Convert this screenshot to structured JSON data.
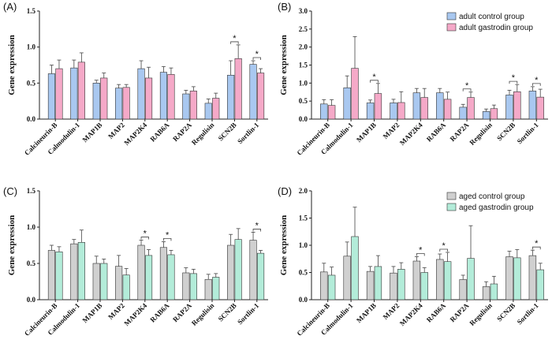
{
  "chart_data": [
    {
      "type": "bar",
      "panel": "(A)",
      "ylabel": "Gene expression",
      "ylim": [
        0,
        1.5
      ],
      "yticks": [
        "0.0",
        "0.5",
        "1.0",
        "1.5"
      ],
      "legend": null,
      "categories": [
        "Calcineurin-B",
        "Calmodulin-1",
        "MAP1B",
        "MAP2",
        "MAP2K4",
        "RAB6A",
        "RAP2A",
        "Regulisin",
        "SCN2B",
        "Sortlin-1"
      ],
      "series": [
        {
          "name": "adult control group",
          "color": "#a9c8f0",
          "values": [
            0.63,
            0.71,
            0.5,
            0.43,
            0.7,
            0.65,
            0.35,
            0.22,
            0.61,
            0.76
          ],
          "errors": [
            0.12,
            0.11,
            0.04,
            0.05,
            0.11,
            0.08,
            0.05,
            0.06,
            0.2,
            0.05
          ]
        },
        {
          "name": "adult gastrodin group",
          "color": "#f5a9c8",
          "values": [
            0.7,
            0.79,
            0.57,
            0.44,
            0.57,
            0.62,
            0.39,
            0.29,
            0.84,
            0.64
          ],
          "errors": [
            0.12,
            0.13,
            0.07,
            0.04,
            0.15,
            0.09,
            0.06,
            0.07,
            0.19,
            0.06
          ]
        }
      ],
      "significance": [
        {
          "category": "SCN2B",
          "label": "*"
        },
        {
          "category": "Sortlin-1",
          "label": "*"
        }
      ]
    },
    {
      "type": "bar",
      "panel": "(B)",
      "ylabel": "Gene expression",
      "ylim": [
        0,
        3.0
      ],
      "yticks": [
        "0.0",
        "0.5",
        "1.0",
        "1.5",
        "2.0",
        "2.5",
        "3.0"
      ],
      "legend": {
        "position": "top-right",
        "entries": [
          "adult control group",
          "adult gastrodin group"
        ]
      },
      "categories": [
        "Calcineurin-B",
        "Calmodulin-1",
        "MAP1B",
        "MAP2",
        "MAP2K4",
        "RAB6A",
        "RAP2A",
        "Regulisin",
        "SCN2B",
        "Sortlin-1"
      ],
      "series": [
        {
          "name": "adult control group",
          "color": "#a9c8f0",
          "values": [
            0.42,
            0.87,
            0.45,
            0.45,
            0.73,
            0.73,
            0.33,
            0.21,
            0.67,
            0.78
          ],
          "errors": [
            0.12,
            0.33,
            0.08,
            0.1,
            0.12,
            0.12,
            0.08,
            0.07,
            0.13,
            0.12
          ]
        },
        {
          "name": "adult gastrodin group",
          "color": "#f5a9c8",
          "values": [
            0.38,
            1.41,
            0.71,
            0.46,
            0.6,
            0.55,
            0.6,
            0.29,
            0.76,
            0.61
          ],
          "errors": [
            0.16,
            0.88,
            0.28,
            0.3,
            0.25,
            0.2,
            0.15,
            0.1,
            0.2,
            0.22
          ]
        }
      ],
      "significance": [
        {
          "category": "MAP1B",
          "label": "*"
        },
        {
          "category": "RAP2A",
          "label": "*"
        },
        {
          "category": "SCN2B",
          "label": "*"
        },
        {
          "category": "Sortlin-1",
          "label": "*"
        }
      ]
    },
    {
      "type": "bar",
      "panel": "(C)",
      "ylabel": "Gene expression",
      "ylim": [
        0,
        1.5
      ],
      "yticks": [
        "0.0",
        "0.5",
        "1.0",
        "1.5"
      ],
      "legend": null,
      "categories": [
        "Calcineurin-B",
        "Calmodulin-1",
        "MAP1B",
        "MAP2",
        "MAP2K4",
        "RAB6A",
        "RAP2A",
        "Regulisin",
        "SCN2B",
        "Sortlin-1"
      ],
      "series": [
        {
          "name": "aged control group",
          "color": "#d0d0d0",
          "values": [
            0.68,
            0.77,
            0.5,
            0.46,
            0.75,
            0.72,
            0.37,
            0.28,
            0.75,
            0.82
          ],
          "errors": [
            0.07,
            0.06,
            0.1,
            0.15,
            0.07,
            0.08,
            0.07,
            0.07,
            0.15,
            0.11
          ]
        },
        {
          "name": "aged gastrodin group",
          "color": "#b3ecd9",
          "values": [
            0.66,
            0.79,
            0.5,
            0.34,
            0.61,
            0.62,
            0.36,
            0.31,
            0.83,
            0.64
          ],
          "errors": [
            0.07,
            0.17,
            0.06,
            0.09,
            0.08,
            0.06,
            0.06,
            0.05,
            0.15,
            0.04
          ]
        }
      ],
      "significance": [
        {
          "category": "MAP2K4",
          "label": "*"
        },
        {
          "category": "RAB6A",
          "label": "*"
        },
        {
          "category": "Sortlin-1",
          "label": "*"
        }
      ]
    },
    {
      "type": "bar",
      "panel": "(D)",
      "ylabel": "Gene expression",
      "ylim": [
        0,
        2.0
      ],
      "yticks": [
        "0.0",
        "0.5",
        "1.0",
        "1.5",
        "2.0"
      ],
      "legend": {
        "position": "top-right",
        "entries": [
          "aged control group",
          " aged gastrodin group"
        ]
      },
      "categories": [
        "Calcineurin-B",
        "Calmodulin-1",
        "MAP1B",
        "MAP2",
        "MAP2K4",
        "RAB6A",
        "RAP2A",
        "Regulisin",
        "SCN2B",
        "Sortlin-1"
      ],
      "series": [
        {
          "name": "aged control group",
          "color": "#d0d0d0",
          "values": [
            0.51,
            0.8,
            0.52,
            0.49,
            0.71,
            0.74,
            0.37,
            0.24,
            0.79,
            0.81
          ],
          "errors": [
            0.16,
            0.26,
            0.09,
            0.12,
            0.08,
            0.1,
            0.08,
            0.09,
            0.1,
            0.1
          ]
        },
        {
          "name": " aged gastrodin group",
          "color": "#b3ecd9",
          "values": [
            0.45,
            1.16,
            0.61,
            0.56,
            0.5,
            0.7,
            0.76,
            0.29,
            0.77,
            0.55
          ],
          "errors": [
            0.15,
            0.54,
            0.2,
            0.12,
            0.09,
            0.17,
            0.6,
            0.14,
            0.15,
            0.12
          ]
        }
      ],
      "significance": [
        {
          "category": "MAP2K4",
          "label": "*"
        },
        {
          "category": "RAB6A",
          "label": "*"
        },
        {
          "category": "Sortlin-1",
          "label": "*"
        }
      ]
    }
  ]
}
